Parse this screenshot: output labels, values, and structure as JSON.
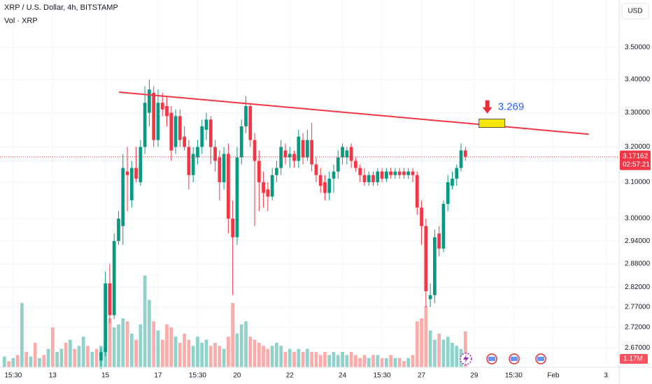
{
  "chart_data": {
    "type": "candlestick",
    "title": "XRP / U.S. Dollar, 4h, BITSTAMP",
    "subtitle": "Vol · XRP",
    "currency": "USD",
    "log_scale": true,
    "grid": true,
    "up_color": "#089981",
    "down_color": "#f23645",
    "xlim": [
      -1,
      140
    ],
    "ylim": [
      2.624,
      3.653
    ],
    "xticks": [
      {
        "value": 2,
        "label": "15:30"
      },
      {
        "value": 11,
        "label": "13"
      },
      {
        "value": 23,
        "label": "15"
      },
      {
        "value": 35,
        "label": "17"
      },
      {
        "value": 44,
        "label": "15:30"
      },
      {
        "value": 53,
        "label": "20"
      },
      {
        "value": 65,
        "label": "22"
      },
      {
        "value": 77,
        "label": "24"
      },
      {
        "value": 86,
        "label": "15:30"
      },
      {
        "value": 95,
        "label": "27"
      },
      {
        "value": 107,
        "label": "29"
      },
      {
        "value": 116,
        "label": "15:30"
      },
      {
        "value": 125,
        "label": "Feb"
      },
      {
        "value": 137,
        "label": "3"
      }
    ],
    "yticks": [
      {
        "value": 3.5,
        "label": "3.50000"
      },
      {
        "value": 3.4,
        "label": "3.40000"
      },
      {
        "value": 3.3,
        "label": "3.30000"
      },
      {
        "value": 3.2,
        "label": "3.20000"
      },
      {
        "value": 3.1,
        "label": "3.10000"
      },
      {
        "value": 3.0,
        "label": "3.00000"
      },
      {
        "value": 2.94,
        "label": "2.94000"
      },
      {
        "value": 2.88,
        "label": "2.88000"
      },
      {
        "value": 2.82,
        "label": "2.82000"
      },
      {
        "value": 2.77,
        "label": "2.77000"
      },
      {
        "value": 2.72,
        "label": "2.72000"
      },
      {
        "value": 2.67,
        "label": "2.67000"
      }
    ],
    "open": [
      null,
      null,
      null,
      null,
      null,
      null,
      null,
      null,
      null,
      null,
      null,
      null,
      null,
      null,
      null,
      null,
      null,
      null,
      null,
      null,
      null,
      null,
      2.64,
      2.66,
      2.83,
      2.75,
      2.94,
      2.98,
      3.13,
      3.05,
      3.14,
      3.1,
      3.2,
      3.3,
      3.36,
      3.22,
      3.33,
      3.32,
      3.3,
      3.2,
      3.29,
      3.23,
      3.2,
      3.12,
      3.17,
      3.2,
      3.25,
      3.28,
      3.2,
      3.17,
      3.1,
      3.18,
      3.0,
      2.95,
      3.17,
      3.26,
      3.32,
      3.22,
      3.16,
      3.1,
      3.08,
      3.06,
      3.12,
      3.14,
      3.19,
      3.17,
      3.18,
      3.16,
      3.22,
      3.17,
      3.22,
      3.15,
      3.12,
      3.1,
      3.07,
      3.11,
      3.13,
      3.17,
      3.17,
      3.2,
      3.16,
      3.14,
      3.12,
      3.1,
      3.12,
      3.1,
      3.13,
      3.11,
      3.13,
      3.12,
      3.13,
      3.13,
      3.12,
      3.13,
      3.12,
      3.03,
      2.98,
      2.79,
      2.8,
      2.96,
      2.92,
      3.04,
      3.09,
      3.11,
      3.14,
      3.19
    ],
    "high": [
      null,
      null,
      null,
      null,
      null,
      null,
      null,
      null,
      null,
      null,
      null,
      null,
      null,
      null,
      null,
      null,
      null,
      null,
      null,
      null,
      null,
      null,
      2.67,
      2.86,
      2.88,
      2.96,
      3.02,
      3.18,
      3.2,
      3.16,
      3.2,
      3.22,
      3.38,
      3.4,
      3.38,
      3.37,
      3.36,
      3.35,
      3.32,
      3.31,
      3.31,
      3.26,
      3.22,
      3.2,
      3.22,
      3.28,
      3.3,
      3.29,
      3.22,
      3.19,
      3.2,
      3.21,
      3.05,
      3.2,
      3.28,
      3.35,
      3.33,
      3.24,
      3.19,
      3.13,
      3.1,
      3.14,
      3.16,
      3.22,
      3.21,
      3.2,
      3.19,
      3.25,
      3.24,
      3.25,
      3.27,
      3.17,
      3.14,
      3.12,
      3.13,
      3.15,
      3.19,
      3.21,
      3.2,
      3.21,
      3.17,
      3.15,
      3.14,
      3.13,
      3.13,
      3.14,
      3.14,
      3.14,
      3.14,
      3.14,
      3.14,
      3.14,
      3.14,
      3.14,
      3.13,
      3.05,
      3.0,
      2.83,
      2.97,
      2.98,
      3.05,
      3.12,
      3.13,
      3.15,
      3.21,
      3.2
    ],
    "low": [
      null,
      null,
      null,
      null,
      null,
      null,
      null,
      null,
      null,
      null,
      null,
      null,
      null,
      null,
      null,
      null,
      null,
      null,
      null,
      null,
      null,
      null,
      2.62,
      2.65,
      2.73,
      2.74,
      2.93,
      2.93,
      3.02,
      3.03,
      3.1,
      3.09,
      3.18,
      3.26,
      3.2,
      3.2,
      3.29,
      3.26,
      3.16,
      3.18,
      3.2,
      3.19,
      3.08,
      3.1,
      3.15,
      3.18,
      3.22,
      3.15,
      3.13,
      3.05,
      3.08,
      2.96,
      2.8,
      2.93,
      3.15,
      3.24,
      3.2,
      2.98,
      3.02,
      3.03,
      3.02,
      3.05,
      3.1,
      3.12,
      3.15,
      3.14,
      3.14,
      3.14,
      3.15,
      3.16,
      3.13,
      3.1,
      3.07,
      3.05,
      3.05,
      3.07,
      3.11,
      3.15,
      3.15,
      3.14,
      3.13,
      3.1,
      3.09,
      3.09,
      3.09,
      3.09,
      3.1,
      3.1,
      3.11,
      3.11,
      3.11,
      3.11,
      3.11,
      3.1,
      3.01,
      2.93,
      2.77,
      2.77,
      2.78,
      2.9,
      2.91,
      3.02,
      3.08,
      3.09,
      3.13,
      3.16
    ],
    "close": [
      null,
      null,
      null,
      null,
      null,
      null,
      null,
      null,
      null,
      null,
      null,
      null,
      null,
      null,
      null,
      null,
      null,
      null,
      null,
      null,
      null,
      null,
      2.66,
      2.83,
      2.75,
      2.94,
      3.0,
      3.14,
      3.12,
      3.14,
      3.11,
      3.2,
      3.33,
      3.37,
      3.22,
      3.33,
      3.31,
      3.29,
      3.19,
      3.29,
      3.22,
      3.2,
      3.12,
      3.18,
      3.2,
      3.26,
      3.28,
      3.2,
      3.16,
      3.1,
      3.18,
      3.0,
      2.95,
      3.17,
      3.26,
      3.32,
      3.22,
      3.16,
      3.1,
      3.07,
      3.06,
      3.12,
      3.14,
      3.2,
      3.17,
      3.18,
      3.16,
      3.23,
      3.17,
      3.22,
      3.15,
      3.12,
      3.09,
      3.07,
      3.11,
      3.13,
      3.17,
      3.2,
      3.19,
      3.16,
      3.14,
      3.12,
      3.1,
      3.12,
      3.1,
      3.13,
      3.11,
      3.13,
      3.12,
      3.13,
      3.12,
      3.12,
      3.13,
      3.12,
      3.03,
      2.98,
      2.81,
      2.8,
      2.95,
      2.92,
      3.04,
      3.1,
      3.11,
      3.14,
      3.19,
      3.17162
    ],
    "last_price": 3.17162,
    "countdown": "02:57:21",
    "volume": {
      "ylim": [
        0,
        12
      ],
      "last_value_label": "1.17M",
      "values": [
        0.35,
        0.2,
        0.3,
        0.4,
        2.1,
        0.5,
        0.35,
        0.8,
        0.3,
        0.4,
        0.6,
        1.3,
        0.5,
        0.6,
        0.8,
        0.9,
        0.6,
        0.7,
        1.0,
        0.7,
        0.5,
        0.6,
        0.7,
        1.0,
        1.6,
        1.3,
        1.4,
        1.6,
        1.5,
        1.1,
        0.9,
        1.4,
        3.0,
        2.2,
        1.5,
        1.2,
        0.9,
        1.4,
        1.3,
        1.0,
        0.8,
        1.1,
        0.9,
        0.7,
        1.0,
        0.8,
        0.9,
        0.7,
        0.8,
        0.7,
        0.6,
        1.0,
        2.1,
        1.1,
        1.4,
        1.5,
        1.0,
        0.9,
        0.8,
        0.7,
        0.6,
        0.7,
        0.8,
        0.7,
        0.5,
        0.6,
        0.5,
        0.6,
        0.5,
        0.6,
        0.5,
        0.5,
        0.4,
        0.5,
        0.4,
        0.5,
        0.4,
        0.5,
        0.4,
        0.5,
        0.4,
        0.3,
        0.4,
        0.3,
        0.4,
        0.4,
        0.3,
        0.3,
        0.4,
        0.3,
        0.3,
        0.2,
        0.3,
        0.4,
        1.5,
        1.6,
        2.0,
        1.2,
        0.9,
        1.1,
        0.9,
        1.0,
        0.8,
        0.7,
        0.6,
        1.17
      ],
      "colors": [
        "#8ed2c9",
        "#f9acaa",
        "#8ed2c9",
        "#f9acaa",
        "#8ed2c9",
        "#f9acaa",
        "#8ed2c9",
        "#f9acaa",
        "#8ed2c9",
        "#f9acaa",
        "#8ed2c9",
        "#f9acaa",
        "#8ed2c9",
        "#8ed2c9",
        "#f9acaa",
        "#8ed2c9",
        "#f9acaa",
        "#8ed2c9",
        "#8ed2c9",
        "#f9acaa",
        "#8ed2c9",
        "#f9acaa",
        "#8ed2c9",
        "#8ed2c9",
        "#f9acaa",
        "#8ed2c9",
        "#8ed2c9",
        "#8ed2c9",
        "#f9acaa",
        "#8ed2c9",
        "#f9acaa",
        "#8ed2c9",
        "#8ed2c9",
        "#8ed2c9",
        "#f9acaa",
        "#8ed2c9",
        "#f9acaa",
        "#f9acaa",
        "#f9acaa",
        "#8ed2c9",
        "#f9acaa",
        "#f9acaa",
        "#f9acaa",
        "#8ed2c9",
        "#8ed2c9",
        "#8ed2c9",
        "#8ed2c9",
        "#f9acaa",
        "#f9acaa",
        "#f9acaa",
        "#8ed2c9",
        "#f9acaa",
        "#f9acaa",
        "#8ed2c9",
        "#8ed2c9",
        "#8ed2c9",
        "#f9acaa",
        "#f9acaa",
        "#f9acaa",
        "#f9acaa",
        "#f9acaa",
        "#8ed2c9",
        "#8ed2c9",
        "#8ed2c9",
        "#f9acaa",
        "#8ed2c9",
        "#f9acaa",
        "#8ed2c9",
        "#f9acaa",
        "#8ed2c9",
        "#f9acaa",
        "#f9acaa",
        "#f9acaa",
        "#f9acaa",
        "#8ed2c9",
        "#8ed2c9",
        "#8ed2c9",
        "#8ed2c9",
        "#8ed2c9",
        "#f9acaa",
        "#f9acaa",
        "#f9acaa",
        "#f9acaa",
        "#8ed2c9",
        "#f9acaa",
        "#8ed2c9",
        "#f9acaa",
        "#8ed2c9",
        "#f9acaa",
        "#8ed2c9",
        "#f9acaa",
        "#f9acaa",
        "#8ed2c9",
        "#f9acaa",
        "#f9acaa",
        "#f9acaa",
        "#f9acaa",
        "#8ed2c9",
        "#8ed2c9",
        "#f9acaa",
        "#8ed2c9",
        "#8ed2c9",
        "#8ed2c9",
        "#8ed2c9",
        "#8ed2c9",
        "#f9acaa"
      ]
    },
    "trendline": {
      "x": [
        26.1,
        133.1
      ],
      "y": [
        3.362,
        3.237
      ],
      "color": "#f23645"
    },
    "annotation": {
      "x": 110,
      "value": 3.269,
      "color": "#2962ff",
      "marker_color": "#f5e50a",
      "arrow_color": "#e0313c"
    }
  }
}
